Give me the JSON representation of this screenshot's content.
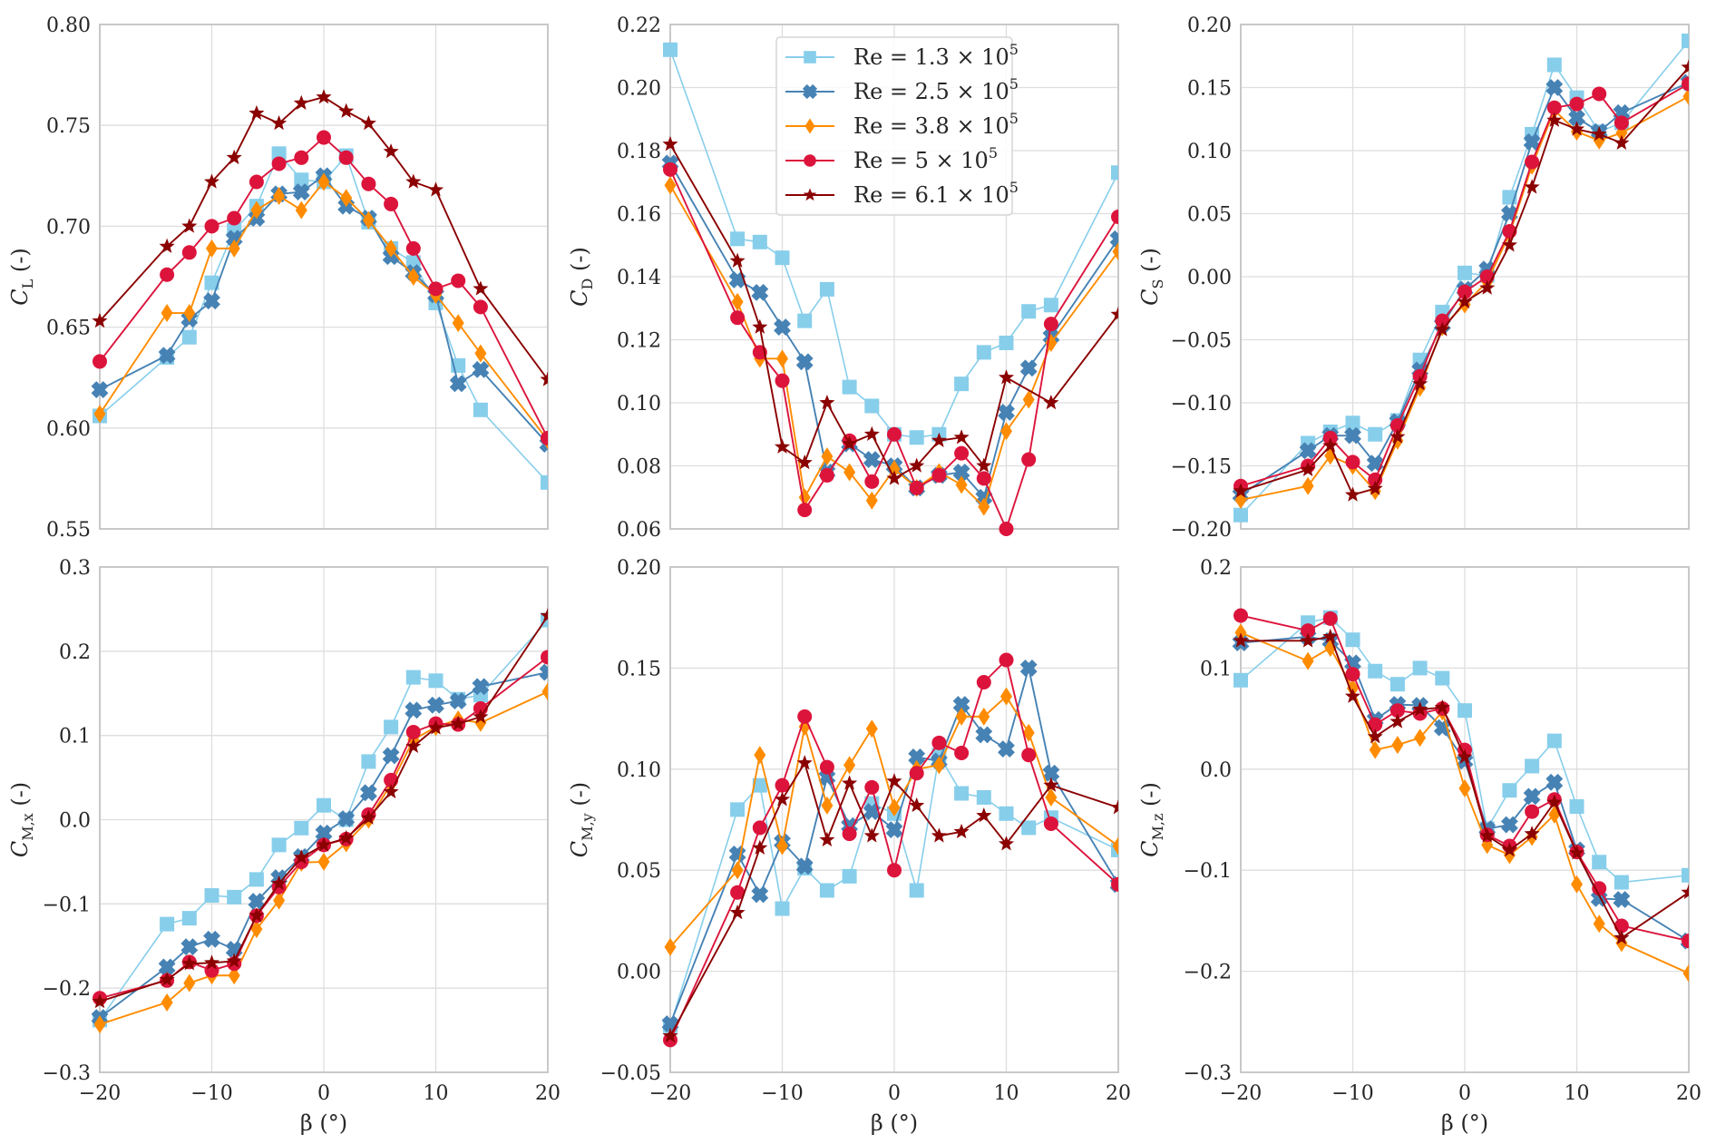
{
  "chart_data": {
    "type": "line",
    "layout": "2x3 subplot grid",
    "x": [
      -20,
      -14,
      -12,
      -10,
      -8,
      -6,
      -4,
      -2,
      0,
      2,
      4,
      6,
      8,
      10,
      12,
      14,
      20
    ],
    "xlabel": "β (°)",
    "xlim": [
      -20,
      20
    ],
    "xticks": [
      -20,
      -10,
      0,
      10,
      20
    ],
    "xtick_labels": [
      "−20",
      "−10",
      "0",
      "10",
      "20"
    ],
    "grid": true,
    "legend": {
      "placement": "upper-center of drag panel",
      "entries": [
        {
          "label": "Re = 1.3 × 10",
          "exp": "5",
          "color": "#87CEEB",
          "marker": "square"
        },
        {
          "label": "Re = 2.5 × 10",
          "exp": "5",
          "color": "#4682B4",
          "marker": "X"
        },
        {
          "label": "Re = 3.8 × 10",
          "exp": "5",
          "color": "#FF8C00",
          "marker": "diamond"
        },
        {
          "label": "Re = 5 × 10",
          "exp": "5",
          "color": "#DC143C",
          "marker": "circle"
        },
        {
          "label": "Re = 6.1 × 10",
          "exp": "5",
          "color": "#8B0000",
          "marker": "star"
        }
      ]
    },
    "panels": [
      {
        "id": "lift",
        "ylabel_main": "C",
        "ylabel_sub": "L",
        "ylabel_suffix": " (-)",
        "ylim": [
          0.55,
          0.8
        ],
        "yticks": [
          0.55,
          0.6,
          0.65,
          0.7,
          0.75,
          0.8
        ],
        "ytick_labels": [
          "0.55",
          "0.60",
          "0.65",
          "0.70",
          "0.75",
          "0.80"
        ],
        "show_xticklabels": false,
        "series": [
          {
            "name": "Re = 1.3 × 10^5",
            "values": [
              0.606,
              0.635,
              0.645,
              0.672,
              0.698,
              0.71,
              0.736,
              0.723,
              0.722,
              0.735,
              0.702,
              0.689,
              0.682,
              0.662,
              0.631,
              0.609,
              0.573
            ]
          },
          {
            "name": "Re = 2.5 × 10^5",
            "values": [
              0.619,
              0.636,
              0.654,
              0.663,
              0.694,
              0.704,
              0.716,
              0.717,
              0.725,
              0.71,
              0.704,
              0.685,
              0.677,
              0.666,
              0.622,
              0.629,
              0.592
            ]
          },
          {
            "name": "Re = 3.8 × 10^5",
            "values": [
              0.607,
              0.657,
              0.657,
              0.689,
              0.689,
              0.708,
              0.715,
              0.708,
              0.722,
              0.714,
              0.703,
              0.689,
              0.675,
              0.666,
              0.652,
              0.637,
              0.594
            ]
          },
          {
            "name": "Re = 5 × 10^5",
            "values": [
              0.633,
              0.676,
              0.687,
              0.7,
              0.704,
              0.722,
              0.731,
              0.734,
              0.744,
              0.734,
              0.721,
              0.711,
              0.689,
              0.669,
              0.673,
              0.66,
              0.595
            ]
          },
          {
            "name": "Re = 6.1 × 10^5",
            "values": [
              0.653,
              0.69,
              0.7,
              0.722,
              0.734,
              0.756,
              0.751,
              0.761,
              0.764,
              0.757,
              0.751,
              0.737,
              0.722,
              0.718,
              null,
              0.669,
              0.624
            ]
          }
        ]
      },
      {
        "id": "drag",
        "ylabel_main": "C",
        "ylabel_sub": "D",
        "ylabel_suffix": " (-)",
        "ylim": [
          0.06,
          0.22
        ],
        "yticks": [
          0.06,
          0.08,
          0.1,
          0.12,
          0.14,
          0.16,
          0.18,
          0.2,
          0.22
        ],
        "ytick_labels": [
          "0.06",
          "0.08",
          "0.10",
          "0.12",
          "0.14",
          "0.16",
          "0.18",
          "0.20",
          "0.22"
        ],
        "show_xticklabels": false,
        "has_legend": true,
        "series": [
          {
            "name": "Re = 1.3 × 10^5",
            "values": [
              0.212,
              0.152,
              0.151,
              0.146,
              0.126,
              0.136,
              0.105,
              0.099,
              0.09,
              0.089,
              0.09,
              0.106,
              0.116,
              0.119,
              0.129,
              0.131,
              0.173
            ]
          },
          {
            "name": "Re = 2.5 × 10^5",
            "values": [
              0.176,
              0.139,
              0.135,
              0.124,
              0.113,
              0.078,
              0.087,
              0.082,
              0.08,
              0.073,
              0.077,
              0.078,
              0.07,
              0.097,
              0.111,
              0.121,
              0.152
            ]
          },
          {
            "name": "Re = 3.8 × 10^5",
            "values": [
              0.169,
              0.132,
              0.114,
              0.114,
              0.07,
              0.083,
              0.078,
              0.069,
              0.079,
              0.073,
              0.078,
              0.074,
              0.067,
              0.091,
              0.101,
              0.119,
              0.148
            ]
          },
          {
            "name": "Re = 5 × 10^5",
            "values": [
              0.174,
              0.127,
              0.116,
              0.107,
              0.066,
              0.077,
              0.088,
              0.075,
              0.09,
              0.073,
              0.077,
              0.084,
              0.076,
              0.06,
              0.082,
              0.125,
              0.159
            ]
          },
          {
            "name": "Re = 6.1 × 10^5",
            "values": [
              0.182,
              0.145,
              0.124,
              0.086,
              0.081,
              0.1,
              0.087,
              0.09,
              0.076,
              0.08,
              0.088,
              0.089,
              0.08,
              0.108,
              null,
              0.1,
              0.128
            ]
          }
        ]
      },
      {
        "id": "side",
        "ylabel_main": "C",
        "ylabel_sub": "S",
        "ylabel_suffix": " (-)",
        "ylim": [
          -0.2,
          0.2
        ],
        "yticks": [
          -0.2,
          -0.15,
          -0.1,
          -0.05,
          0.0,
          0.05,
          0.1,
          0.15,
          0.2
        ],
        "ytick_labels": [
          "−0.20",
          "−0.15",
          "−0.10",
          "−0.05",
          "0.00",
          "0.05",
          "0.10",
          "0.15",
          "0.20"
        ],
        "show_xticklabels": false,
        "series": [
          {
            "name": "Re = 1.3 × 10^5",
            "values": [
              -0.189,
              -0.132,
              -0.123,
              -0.116,
              -0.125,
              -0.114,
              -0.066,
              -0.028,
              0.003,
              0.001,
              0.063,
              0.113,
              0.168,
              0.142,
              0.115,
              0.122,
              0.187
            ]
          },
          {
            "name": "Re = 2.5 × 10^5",
            "values": [
              -0.173,
              -0.138,
              -0.126,
              -0.126,
              -0.148,
              -0.115,
              -0.074,
              -0.038,
              -0.01,
              0.006,
              0.05,
              0.107,
              0.15,
              0.126,
              0.115,
              0.13,
              0.154
            ]
          },
          {
            "name": "Re = 3.8 × 10^5",
            "values": [
              -0.177,
              -0.166,
              -0.142,
              -0.15,
              -0.17,
              -0.13,
              -0.088,
              -0.04,
              -0.022,
              -0.004,
              0.034,
              0.088,
              0.132,
              0.115,
              0.108,
              0.114,
              0.143
            ]
          },
          {
            "name": "Re = 5 × 10^5",
            "values": [
              -0.166,
              -0.15,
              -0.128,
              -0.147,
              -0.161,
              -0.118,
              -0.079,
              -0.035,
              -0.012,
              0.0,
              0.036,
              0.091,
              0.134,
              0.137,
              0.145,
              0.122,
              0.153
            ]
          },
          {
            "name": "Re = 6.1 × 10^5",
            "values": [
              -0.17,
              -0.153,
              -0.134,
              -0.173,
              -0.168,
              -0.127,
              -0.085,
              -0.042,
              -0.02,
              -0.009,
              0.025,
              0.071,
              0.124,
              0.117,
              0.113,
              0.106,
              0.166
            ]
          }
        ]
      },
      {
        "id": "roll-moment",
        "ylabel_main": "C",
        "ylabel_sub": "M,x",
        "ylabel_suffix": " (-)",
        "ylim": [
          -0.3,
          0.3
        ],
        "yticks": [
          -0.3,
          -0.2,
          -0.1,
          0.0,
          0.1,
          0.2,
          0.3
        ],
        "ytick_labels": [
          "−0.3",
          "−0.2",
          "−0.1",
          "0.0",
          "0.1",
          "0.2",
          "0.3"
        ],
        "show_xticklabels": true,
        "series": [
          {
            "name": "Re = 1.3 × 10^5",
            "values": [
              -0.238,
              -0.124,
              -0.117,
              -0.09,
              -0.092,
              -0.071,
              -0.03,
              -0.01,
              0.017,
              0.0,
              0.069,
              0.11,
              0.169,
              0.165,
              0.143,
              0.148,
              0.237
            ]
          },
          {
            "name": "Re = 2.5 × 10^5",
            "values": [
              -0.235,
              -0.175,
              -0.151,
              -0.142,
              -0.154,
              -0.097,
              -0.069,
              -0.044,
              -0.016,
              0.001,
              0.032,
              0.076,
              0.13,
              0.136,
              0.141,
              0.158,
              0.175
            ]
          },
          {
            "name": "Re = 3.8 × 10^5",
            "values": [
              -0.243,
              -0.217,
              -0.194,
              -0.185,
              -0.185,
              -0.13,
              -0.096,
              -0.051,
              -0.05,
              -0.028,
              0.0,
              0.042,
              0.095,
              0.11,
              0.119,
              0.115,
              0.152
            ]
          },
          {
            "name": "Re = 5 × 10^5",
            "values": [
              -0.212,
              -0.191,
              -0.169,
              -0.179,
              -0.171,
              -0.114,
              -0.08,
              -0.05,
              -0.03,
              -0.023,
              0.006,
              0.047,
              0.104,
              0.114,
              0.113,
              0.132,
              0.193
            ]
          },
          {
            "name": "Re = 6.1 × 10^5",
            "values": [
              -0.216,
              -0.19,
              -0.171,
              -0.17,
              -0.168,
              -0.114,
              -0.076,
              -0.045,
              -0.03,
              -0.022,
              0.002,
              0.033,
              0.087,
              0.109,
              0.114,
              0.122,
              0.242
            ]
          }
        ]
      },
      {
        "id": "pitch-moment",
        "ylabel_main": "C",
        "ylabel_sub": "M,y",
        "ylabel_suffix": " (-)",
        "ylim": [
          -0.05,
          0.2
        ],
        "yticks": [
          -0.05,
          0.0,
          0.05,
          0.1,
          0.15,
          0.2
        ],
        "ytick_labels": [
          "−0.05",
          "0.00",
          "0.05",
          "0.10",
          "0.15",
          "0.20"
        ],
        "show_xticklabels": true,
        "series": [
          {
            "name": "Re = 1.3 × 10^5",
            "values": [
              -0.027,
              0.08,
              0.092,
              0.031,
              0.051,
              0.04,
              0.047,
              0.083,
              0.078,
              0.04,
              0.107,
              0.088,
              0.086,
              0.078,
              0.071,
              0.076,
              0.06
            ]
          },
          {
            "name": "Re = 2.5 × 10^5",
            "values": [
              -0.026,
              0.058,
              0.038,
              0.064,
              0.052,
              0.096,
              0.072,
              0.079,
              0.07,
              0.106,
              0.104,
              0.132,
              0.117,
              0.11,
              0.15,
              0.098,
              0.043
            ]
          },
          {
            "name": "Re = 3.8 × 10^5",
            "values": [
              0.012,
              0.05,
              0.107,
              0.062,
              0.121,
              0.082,
              0.102,
              0.12,
              0.081,
              0.1,
              0.102,
              0.126,
              0.126,
              0.136,
              0.118,
              0.086,
              0.062
            ]
          },
          {
            "name": "Re = 5 × 10^5",
            "values": [
              -0.034,
              0.039,
              0.071,
              0.092,
              0.126,
              0.101,
              0.068,
              0.091,
              0.05,
              0.098,
              0.113,
              0.108,
              0.143,
              0.154,
              0.107,
              0.073,
              0.043
            ]
          },
          {
            "name": "Re = 6.1 × 10^5",
            "values": [
              -0.032,
              0.029,
              0.061,
              0.085,
              0.103,
              0.065,
              0.093,
              0.067,
              0.094,
              0.082,
              0.067,
              0.069,
              0.077,
              0.063,
              null,
              0.092,
              0.081
            ]
          }
        ]
      },
      {
        "id": "yaw-moment",
        "ylabel_main": "C",
        "ylabel_sub": "M,z",
        "ylabel_suffix": " (-)",
        "ylim": [
          -0.3,
          0.2
        ],
        "yticks": [
          -0.3,
          -0.2,
          -0.1,
          0.0,
          0.1,
          0.2
        ],
        "ytick_labels": [
          "−0.3",
          "−0.2",
          "−0.1",
          "0.0",
          "0.1",
          "0.2"
        ],
        "show_xticklabels": true,
        "series": [
          {
            "name": "Re = 1.3 × 10^5",
            "values": [
              0.088,
              0.145,
              0.15,
              0.128,
              0.097,
              0.084,
              0.1,
              0.09,
              0.058,
              -0.059,
              -0.021,
              0.003,
              0.028,
              -0.037,
              -0.092,
              -0.112,
              -0.105
            ]
          },
          {
            "name": "Re = 2.5 × 10^5",
            "values": [
              0.125,
              0.131,
              0.127,
              0.105,
              0.049,
              0.064,
              0.063,
              0.041,
              0.008,
              -0.059,
              -0.055,
              -0.027,
              -0.013,
              -0.08,
              -0.128,
              -0.129,
              -0.17
            ]
          },
          {
            "name": "Re = 3.8 × 10^5",
            "values": [
              0.135,
              0.107,
              0.12,
              0.08,
              0.019,
              0.024,
              0.031,
              0.057,
              -0.019,
              -0.075,
              -0.085,
              -0.067,
              -0.045,
              -0.114,
              -0.153,
              -0.172,
              -0.202
            ]
          },
          {
            "name": "Re = 5 × 10^5",
            "values": [
              0.152,
              0.137,
              0.149,
              0.094,
              0.044,
              0.058,
              0.055,
              0.06,
              0.019,
              -0.065,
              -0.076,
              -0.042,
              -0.03,
              -0.082,
              -0.118,
              -0.155,
              -0.17
            ]
          },
          {
            "name": "Re = 6.1 × 10^5",
            "values": [
              0.127,
              0.127,
              0.131,
              0.072,
              0.032,
              0.047,
              0.059,
              0.061,
              0.012,
              -0.066,
              -0.08,
              -0.064,
              -0.033,
              -0.083,
              null,
              -0.167,
              -0.122
            ]
          }
        ]
      }
    ]
  }
}
